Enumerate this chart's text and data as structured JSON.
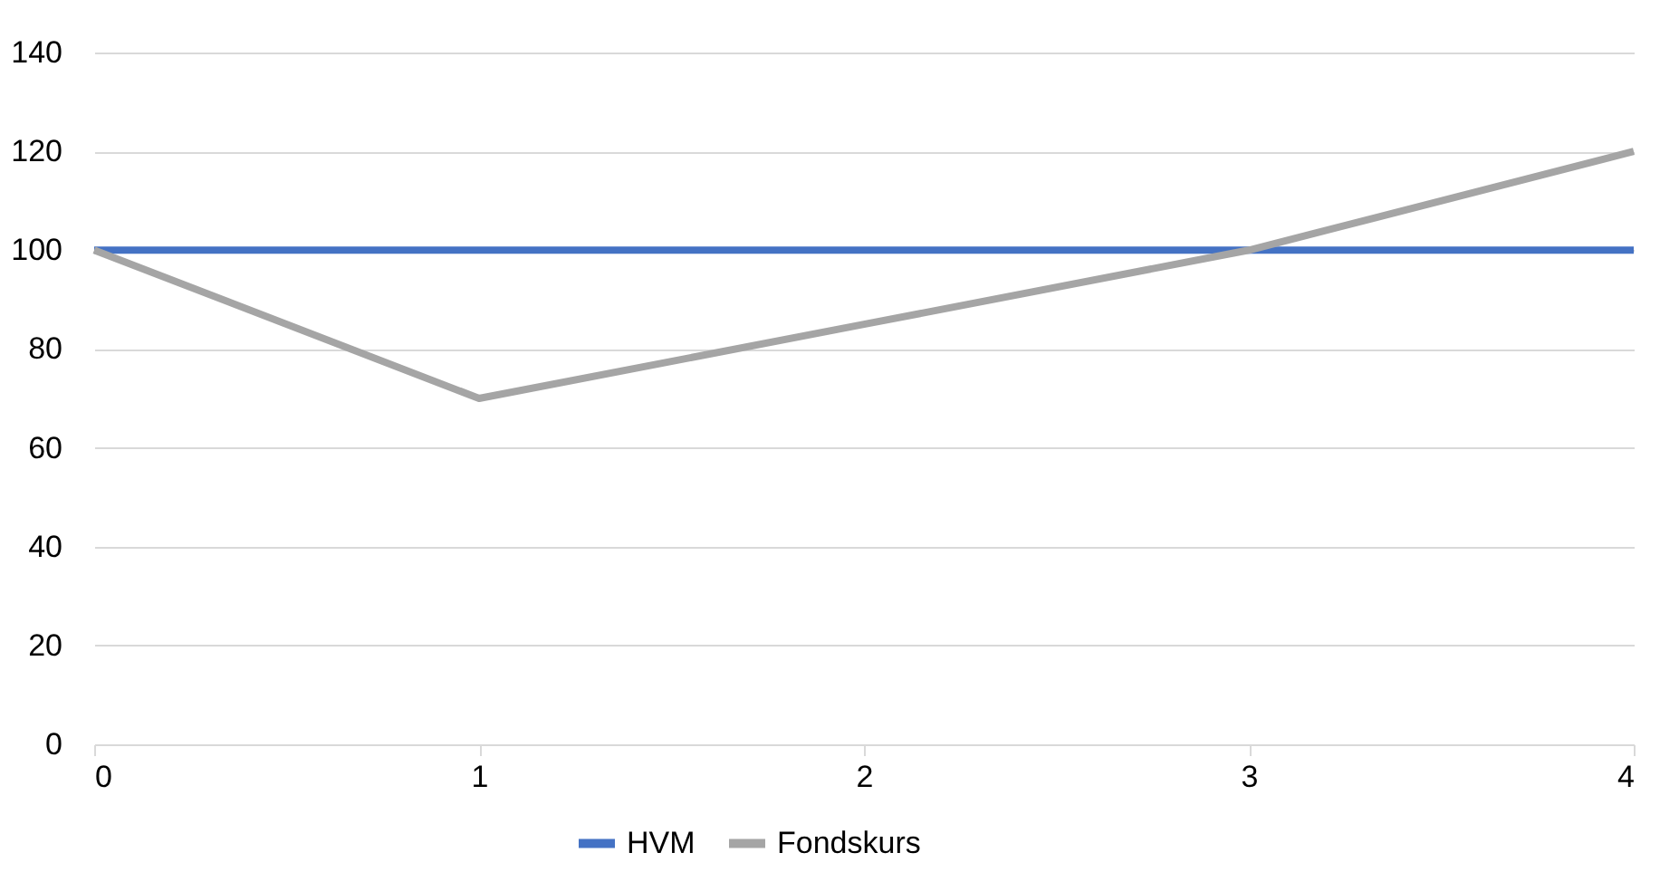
{
  "chart_data": {
    "type": "line",
    "x": [
      0,
      1,
      2,
      3,
      4
    ],
    "series": [
      {
        "name": "HVM",
        "color": "#4472c4",
        "values": [
          100,
          100,
          100,
          100,
          100
        ]
      },
      {
        "name": "Fondskurs",
        "color": "#a5a5a5",
        "values": [
          100,
          70,
          85,
          100,
          120
        ]
      }
    ],
    "xlim": [
      0,
      4
    ],
    "xticks": [
      0,
      1,
      2,
      3,
      4
    ],
    "ylim": [
      0,
      140
    ],
    "yticks": [
      0,
      20,
      40,
      60,
      80,
      100,
      120,
      140
    ],
    "grid": "y",
    "legend": "bottom",
    "marker": "none",
    "line_style": "solid"
  }
}
